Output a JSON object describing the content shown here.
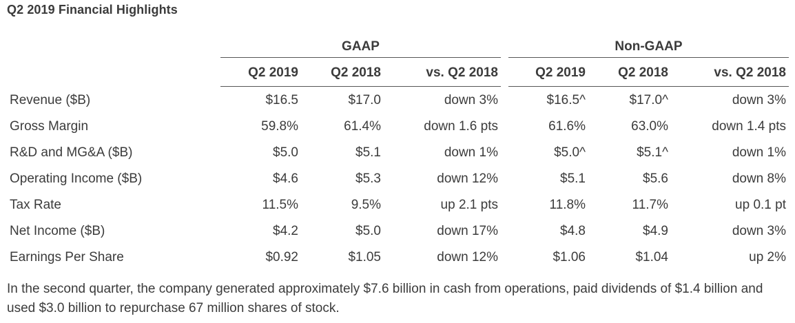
{
  "title": "Q2 2019 Financial Highlights",
  "groups": {
    "gaap": "GAAP",
    "nongaap": "Non-GAAP"
  },
  "columns": [
    "Q2 2019",
    "Q2 2018",
    "vs. Q2 2018",
    "Q2 2019",
    "Q2 2018",
    "vs. Q2 2018"
  ],
  "rows": [
    {
      "label": "Revenue ($B)",
      "values": [
        "$16.5",
        "$17.0",
        "down 3%",
        "$16.5^",
        "$17.0^",
        "down 3%"
      ]
    },
    {
      "label": "Gross Margin",
      "values": [
        "59.8%",
        "61.4%",
        "down 1.6 pts",
        "61.6%",
        "63.0%",
        "down 1.4 pts"
      ]
    },
    {
      "label": "R&D and MG&A ($B)",
      "values": [
        "$5.0",
        "$5.1",
        "down 1%",
        "$5.0^",
        "$5.1^",
        "down 1%"
      ]
    },
    {
      "label": "Operating Income ($B)",
      "values": [
        "$4.6",
        "$5.3",
        "down 12%",
        "$5.1",
        "$5.6",
        "down 8%"
      ]
    },
    {
      "label": "Tax Rate",
      "values": [
        "11.5%",
        "9.5%",
        "up 2.1 pts",
        "11.8%",
        "11.7%",
        "up 0.1 pt"
      ]
    },
    {
      "label": "Net Income ($B)",
      "values": [
        "$4.2",
        "$5.0",
        "down 17%",
        "$4.8",
        "$4.9",
        "down 3%"
      ]
    },
    {
      "label": "Earnings Per Share",
      "values": [
        "$0.92",
        "$1.05",
        "down 12%",
        "$1.06",
        "$1.04",
        "up 2%"
      ]
    }
  ],
  "footnote": "In the second quarter, the company generated approximately $7.6 billion in cash from operations, paid dividends of $1.4 billion and used $3.0 billion to repurchase 67 million shares of stock."
}
